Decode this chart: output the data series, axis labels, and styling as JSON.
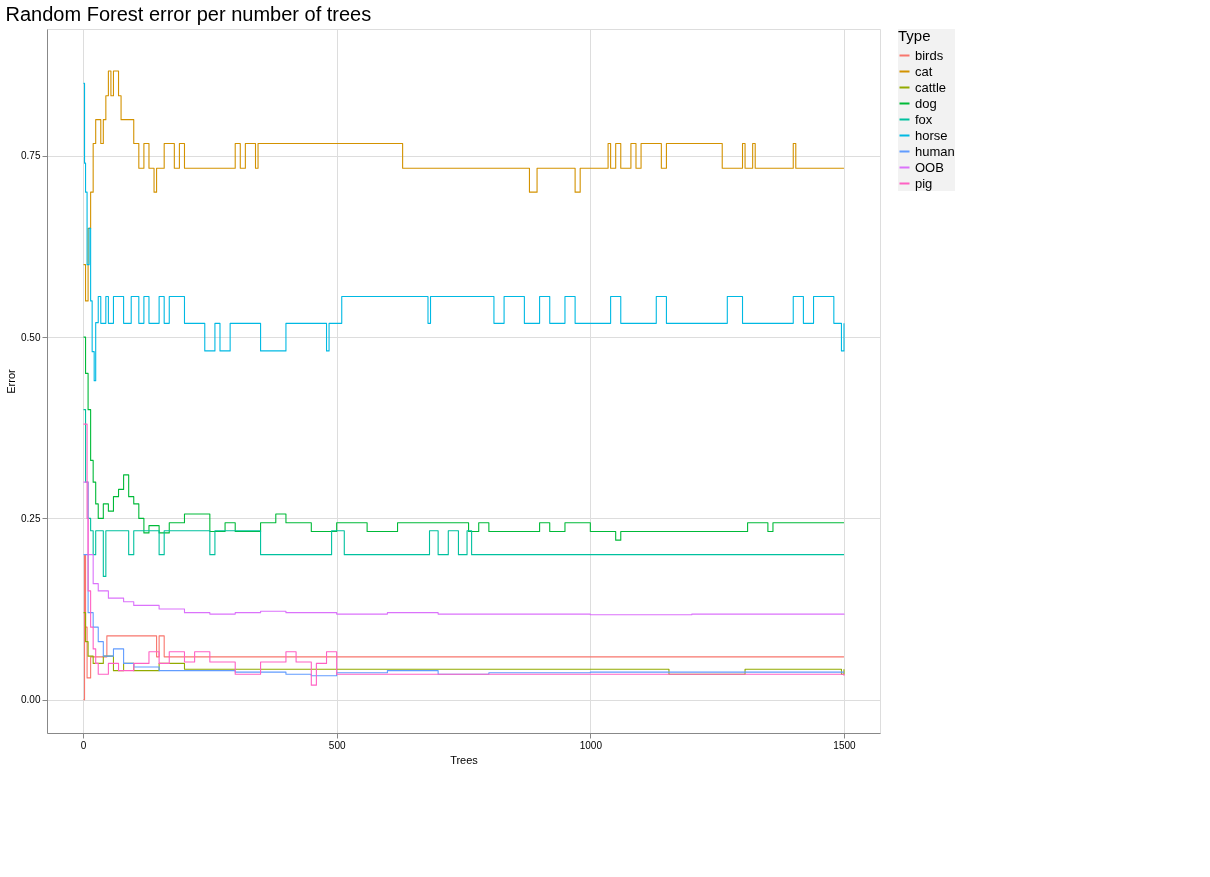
{
  "chart_data": {
    "type": "step",
    "title": "Random Forest error per number of trees",
    "xlabel": "Trees",
    "ylabel": "Error",
    "legend_title": "Type",
    "legend": "right",
    "grid": true,
    "xlim": [
      -71,
      1571
    ],
    "ylim": [
      -0.046,
      0.925
    ],
    "xticks": [
      0,
      500,
      {
        "value": 1000,
        "label": "1000"
      },
      {
        "value": 1500,
        "label": "1500"
      }
    ],
    "yticks": [
      {
        "value": 0,
        "label": "0.00"
      },
      {
        "value": 0.25,
        "label": "0.25"
      },
      {
        "value": 0.5,
        "label": "0.50"
      },
      {
        "value": 0.75,
        "label": "0.75"
      }
    ],
    "series": [
      {
        "name": "birds",
        "color": "#f8766d",
        "x": [
          1,
          3,
          5,
          8,
          15,
          47,
          145,
          150,
          160,
          1500
        ],
        "values": [
          0,
          0.2,
          0.1,
          0.03,
          0.059,
          0.088,
          0.059,
          0.088,
          0.059,
          0.059
        ]
      },
      {
        "name": "cat",
        "color": "#d39200",
        "x": [
          1,
          5,
          10,
          15,
          20,
          25,
          35,
          40,
          45,
          50,
          55,
          60,
          65,
          70,
          75,
          100,
          110,
          120,
          130,
          140,
          145,
          160,
          180,
          190,
          200,
          300,
          310,
          320,
          340,
          345,
          630,
          880,
          895,
          970,
          980,
          1035,
          1040,
          1050,
          1060,
          1080,
          1090,
          1100,
          1140,
          1150,
          1260,
          1300,
          1305,
          1320,
          1325,
          1400,
          1405,
          1500
        ],
        "values": [
          0.6,
          0.55,
          0.65,
          0.7,
          0.767,
          0.8,
          0.767,
          0.8,
          0.833,
          0.867,
          0.833,
          0.867,
          0.867,
          0.833,
          0.8,
          0.767,
          0.733,
          0.767,
          0.733,
          0.7,
          0.733,
          0.767,
          0.733,
          0.767,
          0.733,
          0.767,
          0.733,
          0.767,
          0.733,
          0.767,
          0.733,
          0.7,
          0.733,
          0.7,
          0.733,
          0.767,
          0.733,
          0.767,
          0.733,
          0.767,
          0.733,
          0.767,
          0.733,
          0.767,
          0.733,
          0.767,
          0.733,
          0.767,
          0.733,
          0.767,
          0.733,
          0.733
        ]
      },
      {
        "name": "cattle",
        "color": "#93aa00",
        "x": [
          1,
          5,
          10,
          20,
          40,
          60,
          80,
          100,
          150,
          200,
          1155,
          1305,
          1495,
          1500
        ],
        "values": [
          0.12,
          0.08,
          0.06,
          0.05,
          0.06,
          0.04,
          0.05,
          0.04,
          0.05,
          0.042,
          0.035,
          0.042,
          0.035,
          0.042
        ]
      },
      {
        "name": "dog",
        "color": "#00ba38",
        "x": [
          1,
          5,
          10,
          15,
          20,
          25,
          30,
          40,
          50,
          60,
          70,
          80,
          90,
          100,
          110,
          120,
          130,
          150,
          170,
          200,
          250,
          280,
          300,
          350,
          380,
          400,
          450,
          500,
          560,
          620,
          700,
          760,
          780,
          800,
          900,
          920,
          950,
          1000,
          1050,
          1060,
          1310,
          1350,
          1360,
          1500
        ],
        "values": [
          0.5,
          0.45,
          0.4,
          0.33,
          0.3,
          0.27,
          0.25,
          0.27,
          0.26,
          0.28,
          0.29,
          0.31,
          0.28,
          0.27,
          0.25,
          0.23,
          0.24,
          0.23,
          0.244,
          0.256,
          0.232,
          0.244,
          0.232,
          0.244,
          0.256,
          0.244,
          0.232,
          0.244,
          0.232,
          0.244,
          0.244,
          0.232,
          0.244,
          0.232,
          0.244,
          0.232,
          0.244,
          0.232,
          0.22,
          0.232,
          0.244,
          0.232,
          0.244,
          0.244
        ]
      },
      {
        "name": "fox",
        "color": "#00c19f",
        "x": [
          1,
          5,
          10,
          15,
          20,
          25,
          40,
          45,
          90,
          100,
          150,
          160,
          250,
          260,
          350,
          490,
          515,
          683,
          700,
          720,
          740,
          757,
          766,
          1500
        ],
        "values": [
          0.4,
          0.3,
          0.25,
          0.233,
          0.2,
          0.233,
          0.17,
          0.233,
          0.2,
          0.233,
          0.2,
          0.233,
          0.2,
          0.233,
          0.2,
          0.233,
          0.2,
          0.233,
          0.2,
          0.233,
          0.2,
          0.233,
          0.2,
          0.2
        ]
      },
      {
        "name": "horse",
        "color": "#00b9e3",
        "x": [
          1,
          3,
          5,
          8,
          12,
          15,
          18,
          22,
          25,
          30,
          35,
          45,
          50,
          60,
          80,
          95,
          110,
          120,
          130,
          150,
          160,
          170,
          200,
          240,
          260,
          270,
          290,
          350,
          400,
          480,
          485,
          510,
          680,
          685,
          810,
          830,
          870,
          900,
          920,
          950,
          970,
          1040,
          1060,
          1130,
          1150,
          1270,
          1300,
          1400,
          1420,
          1440,
          1480,
          1495,
          1500
        ],
        "values": [
          0.85,
          0.74,
          0.7,
          0.6,
          0.65,
          0.55,
          0.48,
          0.44,
          0.52,
          0.556,
          0.519,
          0.556,
          0.519,
          0.556,
          0.519,
          0.556,
          0.519,
          0.556,
          0.519,
          0.556,
          0.519,
          0.556,
          0.519,
          0.481,
          0.519,
          0.481,
          0.519,
          0.481,
          0.519,
          0.481,
          0.519,
          0.556,
          0.519,
          0.556,
          0.519,
          0.556,
          0.519,
          0.556,
          0.519,
          0.556,
          0.519,
          0.556,
          0.519,
          0.556,
          0.519,
          0.556,
          0.519,
          0.556,
          0.519,
          0.556,
          0.519,
          0.481,
          0.519
        ]
      },
      {
        "name": "human",
        "color": "#619cff",
        "x": [
          1,
          10,
          20,
          30,
          40,
          60,
          80,
          100,
          150,
          200,
          300,
          400,
          450,
          500,
          600,
          700,
          800,
          1000,
          1500
        ],
        "values": [
          0.2,
          0.12,
          0.1,
          0.08,
          0.06,
          0.07,
          0.05,
          0.045,
          0.04,
          0.04,
          0.038,
          0.035,
          0.033,
          0.037,
          0.04,
          0.035,
          0.037,
          0.038,
          0.038
        ]
      },
      {
        "name": "OOB",
        "color": "#db72fb",
        "x": [
          1,
          10,
          20,
          30,
          50,
          80,
          100,
          150,
          200,
          250,
          300,
          350,
          400,
          500,
          600,
          700,
          800,
          1000,
          1200,
          1400,
          1500
        ],
        "values": [
          0.3,
          0.2,
          0.16,
          0.15,
          0.14,
          0.135,
          0.13,
          0.125,
          0.12,
          0.118,
          0.12,
          0.122,
          0.12,
          0.118,
          0.12,
          0.118,
          0.118,
          0.117,
          0.118,
          0.118,
          0.117
        ]
      },
      {
        "name": "pig",
        "color": "#ff61c3",
        "x": [
          1,
          8,
          10,
          15,
          20,
          25,
          30,
          50,
          70,
          100,
          130,
          150,
          170,
          200,
          220,
          250,
          300,
          350,
          400,
          420,
          450,
          460,
          480,
          500,
          1500
        ],
        "values": [
          0.38,
          0.25,
          0.15,
          0.1,
          0.07,
          0.05,
          0.035,
          0.05,
          0.04,
          0.05,
          0.066,
          0.05,
          0.066,
          0.052,
          0.066,
          0.052,
          0.035,
          0.052,
          0.066,
          0.052,
          0.02,
          0.05,
          0.066,
          0.035,
          0.033
        ]
      }
    ]
  }
}
